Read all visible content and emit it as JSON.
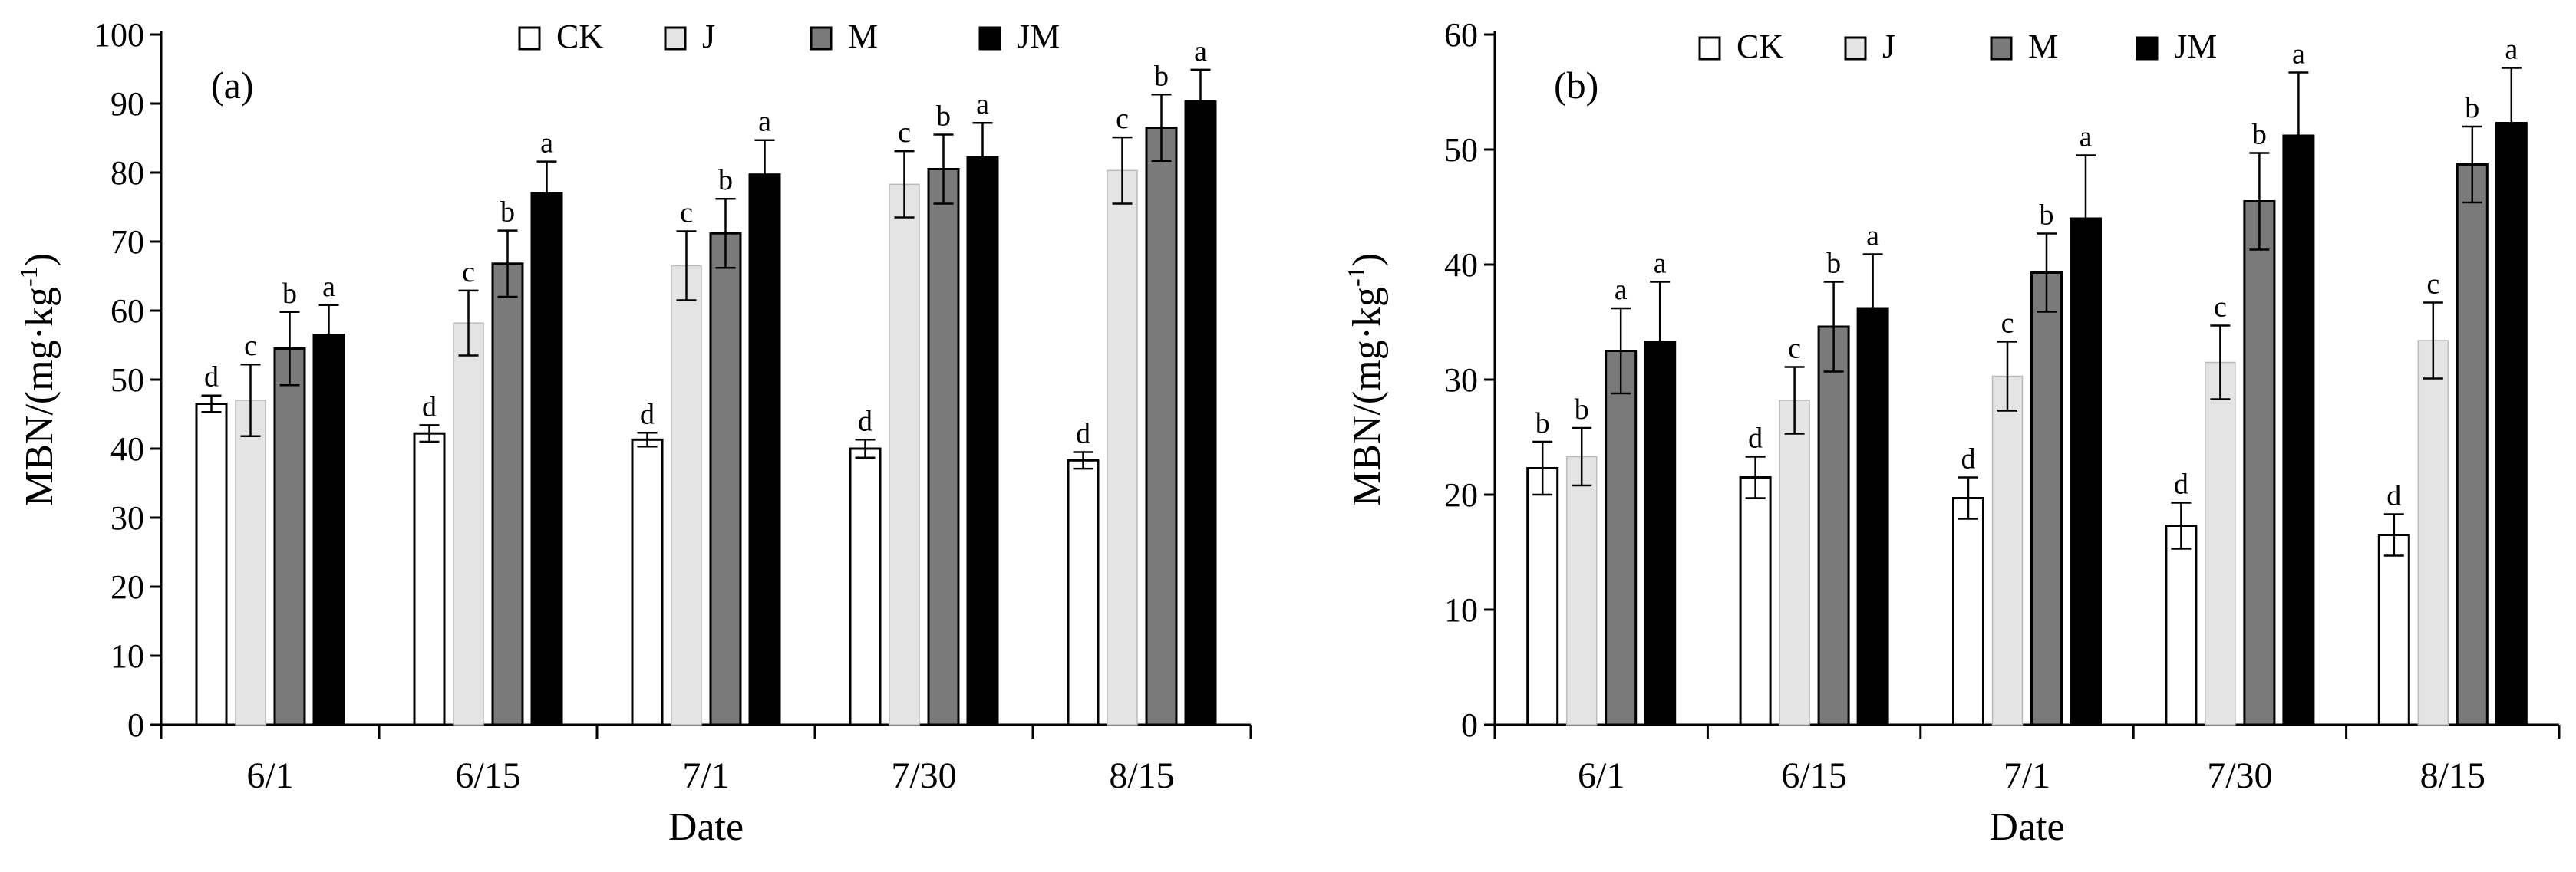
{
  "figure": {
    "panels": [
      "(a)",
      "(b)"
    ]
  },
  "legend": [
    "CK",
    "J",
    "M",
    "JM"
  ],
  "colors": {
    "CK": "#ffffff",
    "J": "#e4e4e4",
    "M": "#7a7a7a",
    "JM": "#000000",
    "stroke": "#000000"
  },
  "chart_data": [
    {
      "type": "bar",
      "panel_label": "(a)",
      "categories": [
        "6/1",
        "6/15",
        "7/1",
        "7/30",
        "8/15"
      ],
      "xlabel": "Date",
      "ylabel_main": "MBN/(mg·kg",
      "ylabel_sup": "-1",
      "ylabel_end": ")",
      "ylim": [
        0,
        100
      ],
      "yticks": [
        "0",
        "10",
        "20",
        "30",
        "40",
        "50",
        "60",
        "70",
        "80",
        "90",
        "100"
      ],
      "legend_position": "top-center",
      "grid": false,
      "series": [
        {
          "name": "CK",
          "values": [
            46.5,
            42.2,
            41.3,
            40.0,
            38.3
          ],
          "errors": [
            1.2,
            1.2,
            1.0,
            1.3,
            1.2
          ],
          "letters": [
            "d",
            "d",
            "d",
            "d",
            "d"
          ]
        },
        {
          "name": "J",
          "values": [
            47.0,
            58.2,
            66.5,
            78.3,
            80.3
          ],
          "errors": [
            5.2,
            4.7,
            5.0,
            4.8,
            4.8
          ],
          "letters": [
            "c",
            "c",
            "c",
            "c",
            "c"
          ]
        },
        {
          "name": "M",
          "values": [
            54.5,
            66.8,
            71.2,
            80.5,
            86.5
          ],
          "errors": [
            5.3,
            4.8,
            5.0,
            5.0,
            4.8
          ],
          "letters": [
            "b",
            "b",
            "b",
            "b",
            "b"
          ]
        },
        {
          "name": "JM",
          "values": [
            56.5,
            77.0,
            79.7,
            82.2,
            90.3
          ],
          "errors": [
            4.3,
            4.6,
            5.0,
            5.0,
            4.6
          ],
          "letters": [
            "a",
            "a",
            "a",
            "a",
            "a"
          ]
        }
      ]
    },
    {
      "type": "bar",
      "panel_label": "(b)",
      "categories": [
        "6/1",
        "6/15",
        "7/1",
        "7/30",
        "8/15"
      ],
      "xlabel": "Date",
      "ylabel_main": "MBN/(mg·kg",
      "ylabel_sup": "-1",
      "ylabel_end": ")",
      "ylim": [
        0,
        60
      ],
      "yticks": [
        "0",
        "10",
        "20",
        "30",
        "40",
        "50",
        "60"
      ],
      "legend_position": "top-center",
      "grid": false,
      "series": [
        {
          "name": "CK",
          "values": [
            22.3,
            21.5,
            19.7,
            17.3,
            16.5
          ],
          "errors": [
            2.3,
            1.8,
            1.8,
            2.0,
            1.8
          ],
          "letters": [
            "b",
            "d",
            "d",
            "d",
            "d"
          ]
        },
        {
          "name": "J",
          "values": [
            23.3,
            28.2,
            30.3,
            31.5,
            33.4
          ],
          "errors": [
            2.5,
            2.9,
            3.0,
            3.2,
            3.3
          ],
          "letters": [
            "b",
            "c",
            "c",
            "c",
            "c"
          ]
        },
        {
          "name": "M",
          "values": [
            32.5,
            34.6,
            39.3,
            45.5,
            48.7
          ],
          "errors": [
            3.7,
            3.9,
            3.4,
            4.2,
            3.3
          ],
          "letters": [
            "a",
            "b",
            "b",
            "b",
            "b"
          ]
        },
        {
          "name": "JM",
          "values": [
            33.3,
            36.2,
            44.0,
            51.2,
            52.3
          ],
          "errors": [
            5.2,
            4.7,
            5.5,
            5.5,
            4.8
          ],
          "letters": [
            "a",
            "a",
            "a",
            "a",
            "a"
          ]
        }
      ]
    }
  ]
}
